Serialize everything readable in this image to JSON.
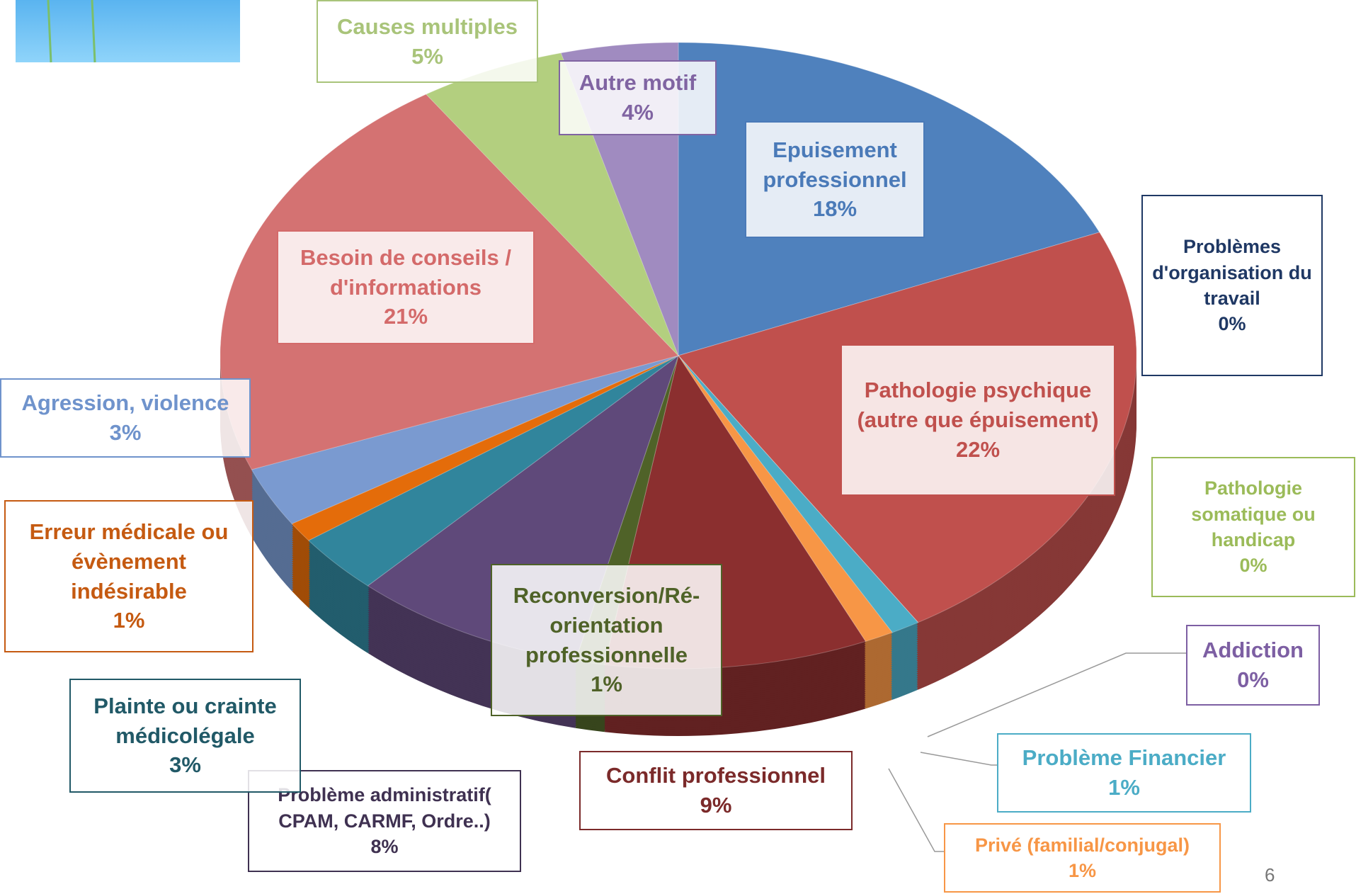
{
  "chart_data": {
    "type": "pie",
    "categories": [
      "Epuisement professionnel",
      "Problèmes d'organisation du travail",
      "Pathologie psychique (autre que épuisement)",
      "Pathologie somatique ou handicap",
      "Addiction",
      "Problème Financier",
      "Privé (familial/conjugal)",
      "Conflit professionnel",
      "Reconversion/Ré-orientation professionnelle",
      "Problème administratif( CPAM, CARMF, Ordre..)",
      "Plainte ou crainte médicolégale",
      "Erreur médicale ou évènement indésirable",
      "Agression, violence",
      "Besoin de conseils / d'informations",
      "Causes multiples",
      "Autre motif"
    ],
    "values": [
      18,
      0,
      22,
      0,
      0,
      1,
      1,
      9,
      1,
      8,
      3,
      1,
      3,
      21,
      5,
      4
    ],
    "value_labels": [
      "18%",
      "0%",
      "22%",
      "0%",
      "0%",
      "1%",
      "1%",
      "9%",
      "1%",
      "8%",
      "3%",
      "1%",
      "3%",
      "21%",
      "5%",
      "4%"
    ],
    "colors": [
      "#4f81bd",
      "#1f497d",
      "#c0504d",
      "#9bbb59",
      "#8064a2",
      "#4bacc6",
      "#f79646",
      "#8b2f2f",
      "#4f6228",
      "#5f497a",
      "#31859c",
      "#e46c0a",
      "#7a9ad0",
      "#d47272",
      "#b3cf7f",
      "#a08bc0"
    ],
    "label_colors": [
      "#4a7ab8",
      "#1f3864",
      "#c0504d",
      "#9bbb59",
      "#7d5fa3",
      "#4bacc6",
      "#f79646",
      "#7b2a2a",
      "#4f6228",
      "#3f3151",
      "#215967",
      "#c55a11",
      "#6f93cc",
      "#d46a6a",
      "#a9c47a",
      "#8064a2"
    ]
  },
  "page_number": "6"
}
